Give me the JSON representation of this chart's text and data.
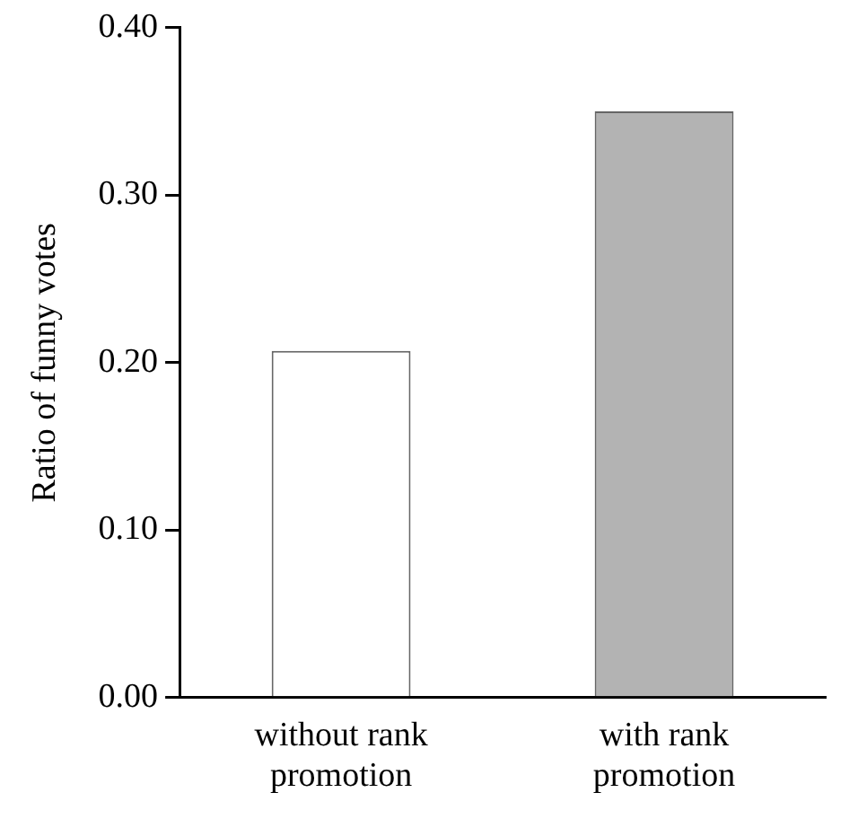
{
  "chart_data": {
    "type": "bar",
    "ylabel": "Ratio of funny votes",
    "categories": [
      "without rank promotion",
      "with rank promotion"
    ],
    "values": [
      0.207,
      0.35
    ],
    "colors": [
      "#ffffff",
      "#b3b3b3"
    ],
    "ylim": [
      0,
      0.4
    ],
    "yticks": [
      {
        "value": 0,
        "label": "0.00"
      },
      {
        "value": 0.1,
        "label": "0.10"
      },
      {
        "value": 0.2,
        "label": "0.20"
      },
      {
        "value": 0.3,
        "label": "0.30"
      },
      {
        "value": 0.4,
        "label": "0.40"
      }
    ],
    "grid": false,
    "legend": false
  }
}
